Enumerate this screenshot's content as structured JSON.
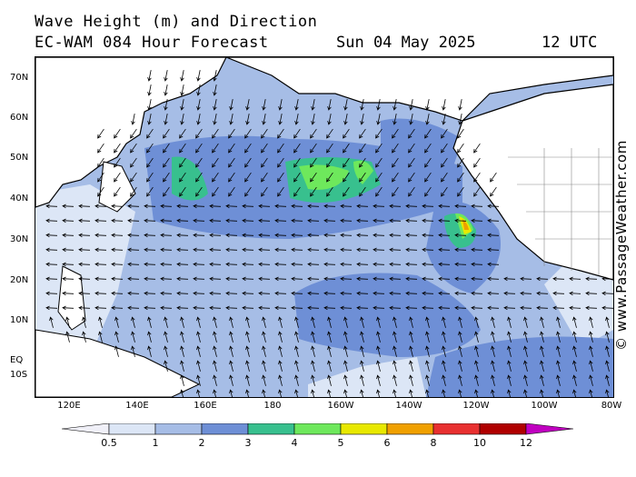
{
  "header": {
    "title": "Wave Height (m) and Direction",
    "model": "EC-WAM 084 Hour Forecast",
    "date": "Sun 04 May 2025",
    "hour": "12 UTC"
  },
  "credit": "© www.PassageWeather.com",
  "map": {
    "latitude_labels": [
      "70N",
      "60N",
      "50N",
      "40N",
      "30N",
      "20N",
      "10N",
      "EQ",
      "10S"
    ],
    "longitude_labels": [
      "120E",
      "140E",
      "160E",
      "180",
      "160W",
      "140W",
      "120W",
      "100W",
      "80W"
    ],
    "colors": {
      "land": "#ffffff",
      "coastline": "#000000",
      "ocean_low": "#dce6f6",
      "ocean_mid": "#a6bde6",
      "ocean_high": "#6e8fd6",
      "wave_3_4": "#38c08e",
      "wave_4_5": "#6ee85c",
      "wave_5_6": "#e8e800",
      "wave_6_8": "#f0a000"
    }
  },
  "legend": {
    "labels": [
      "0.5",
      "1",
      "2",
      "3",
      "4",
      "5",
      "6",
      "8",
      "10",
      "12"
    ],
    "colors": [
      "#f0f0f8",
      "#dce6f6",
      "#a6bde6",
      "#6e8fd6",
      "#38c08e",
      "#6ee85c",
      "#e8e800",
      "#f0a000",
      "#e83030",
      "#b00000",
      "#c000c0"
    ]
  }
}
